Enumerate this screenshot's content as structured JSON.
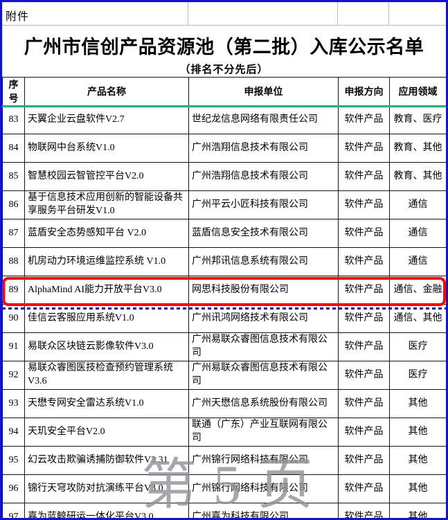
{
  "page": {
    "attachment_label": "附件",
    "title": "广州市信创产品资源池（第二批）入库公示名单",
    "subtitle": "（排名不分先后）",
    "watermark": "第 5 页"
  },
  "table": {
    "columns": [
      "序号",
      "产品名称",
      "申报单位",
      "申报方向",
      "应用领域"
    ],
    "rows": [
      {
        "no": "83",
        "product": "天翼企业云盘软件V2.7",
        "company": "世纪龙信息网络有限责任公司",
        "direction": "软件产品",
        "field": "教育、医疗",
        "highlighted": false
      },
      {
        "no": "84",
        "product": "物联网中台系统V1.0",
        "company": "广州浩翔信息技术有限公司",
        "direction": "软件产品",
        "field": "教育、其他",
        "highlighted": false
      },
      {
        "no": "85",
        "product": "智慧校园云智管控平台V2.0",
        "company": "广州浩翔信息技术有限公司",
        "direction": "软件产品",
        "field": "教育、其他",
        "highlighted": false
      },
      {
        "no": "86",
        "product": "基于信息技术应用创新的智能设备共享服务平台研发V1.0",
        "company": "广州平云小匠科技有限公司",
        "direction": "软件产品",
        "field": "通信",
        "highlighted": false
      },
      {
        "no": "87",
        "product": "蓝盾安全态势感知平台 V2.0",
        "company": "蓝盾信息安全技术有限公司",
        "direction": "软件产品",
        "field": "通信",
        "highlighted": false
      },
      {
        "no": "88",
        "product": "机房动力环境运维监控系统 V1.0",
        "company": "广州邦讯信息系统有限公司",
        "direction": "软件产品",
        "field": "通信",
        "highlighted": false
      },
      {
        "no": "89",
        "product": "AlphaMind AI能力开放平台V3.0",
        "company": "网思科技股份有限公司",
        "direction": "软件产品",
        "field": "通信、金融",
        "highlighted": true
      },
      {
        "no": "90",
        "product": "佳信云客服应用系统V1.0",
        "company": "广州讯鸿网络技术有限公司",
        "direction": "软件产品",
        "field": "通信、其他",
        "highlighted": false
      },
      {
        "no": "91",
        "product": "易联众区块链云影像软件V3.0",
        "company": "广州易联众睿图信息技术有限公司",
        "direction": "软件产品",
        "field": "医疗",
        "highlighted": false
      },
      {
        "no": "92",
        "product": "易联众睿图医技检查预约管理系统V3.6",
        "company": "广州易联众睿图信息技术有限公司",
        "direction": "软件产品",
        "field": "医疗",
        "highlighted": false
      },
      {
        "no": "93",
        "product": "天懋专网安全雷达系统V1.0",
        "company": "广州天懋信息系统股份有限公司",
        "direction": "软件产品",
        "field": "其他",
        "highlighted": false
      },
      {
        "no": "94",
        "product": "天玑安全平台V2.0",
        "company": "联通（广东）产业互联网有限公司",
        "direction": "软件产品",
        "field": "其他",
        "highlighted": false
      },
      {
        "no": "95",
        "product": "幻云攻击欺骗诱捕防御软件V3.31",
        "company": "广州锦行网络科技有限公司",
        "direction": "软件产品",
        "field": "其他",
        "highlighted": false
      },
      {
        "no": "96",
        "product": "锦行天穹攻防对抗演练平台V3.0",
        "company": "广州锦行网络科技有限公司",
        "direction": "软件产品",
        "field": "其他",
        "highlighted": false
      },
      {
        "no": "97",
        "product": "嘉为蓝鲸研运一体化平台V3.0",
        "company": "广州嘉为科技有限公司",
        "direction": "软件产品",
        "field": "其他",
        "highlighted": false
      }
    ]
  },
  "colors": {
    "outer_border": "#1113cf",
    "header_underline": "#27b278",
    "highlight_box": "#fb0806",
    "page_break_line": "#0311c4",
    "watermark_text": "#8f9296",
    "grid_line": "#141414",
    "light_grid_line": "#b4bac6"
  }
}
